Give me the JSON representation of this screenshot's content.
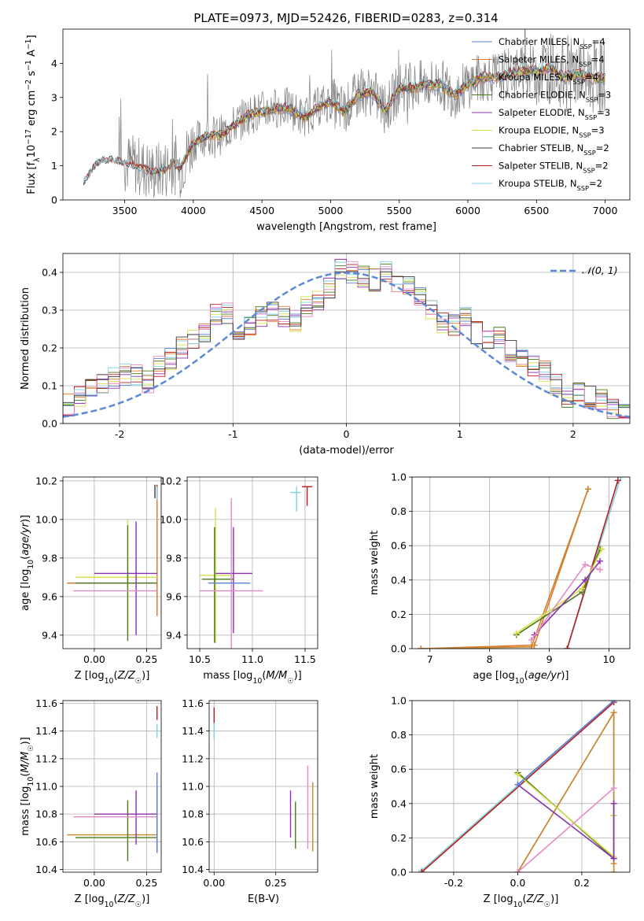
{
  "figure": {
    "title": "PLATE=0973, MJD=52426, FIBERID=0283, z=0.314"
  },
  "colors": {
    "Chabrier MILES": "#5b7fd6",
    "Salpeter MILES": "#e07b2e",
    "Kroupa MILES": "#c8882f",
    "Chabrier ELODIE": "#4a7a1a",
    "Salpeter ELODIE": "#8a2fb0",
    "Kroupa ELODIE": "#d6e04a",
    "Chabrier STELIB": "#3c3c3c",
    "Salpeter STELIB": "#b81c1c",
    "Kroupa STELIB": "#7fd3e0",
    "data": "#808080",
    "normal": "#5b8bd6",
    "extra_pink": "#e68ac4",
    "extra_green": "#7ab83a"
  },
  "chart_data": [
    {
      "id": "spectrum",
      "type": "line",
      "title": "PLATE=0973, MJD=52426, FIBERID=0283, z=0.314",
      "xlabel": "wavelength [Angstrom, rest frame]",
      "ylabel": "Flux [f_λ 10^-17 erg cm^-2 s^-1 A^-1]",
      "xlim": [
        3050,
        7180
      ],
      "ylim": [
        0,
        5
      ],
      "xticks": [
        3500,
        4000,
        4500,
        5000,
        5500,
        6000,
        6500,
        7000
      ],
      "yticks": [
        0,
        1,
        2,
        3,
        4
      ],
      "grid": false,
      "legend_location": "upper right",
      "legend": [
        {
          "label": "Chabrier MILES, N",
          "sub": "SSP",
          "suffix": "=4"
        },
        {
          "label": "Salpeter MILES, N",
          "sub": "SSP",
          "suffix": "=4"
        },
        {
          "label": "Kroupa MILES, N",
          "sub": "SSP",
          "suffix": "=4"
        },
        {
          "label": "Chabrier ELODIE, N",
          "sub": "SSP",
          "suffix": "=3"
        },
        {
          "label": "Salpeter ELODIE, N",
          "sub": "SSP",
          "suffix": "=3"
        },
        {
          "label": "Kroupa ELODIE, N",
          "sub": "SSP",
          "suffix": "=3"
        },
        {
          "label": "Chabrier STELIB, N",
          "sub": "SSP",
          "suffix": "=2"
        },
        {
          "label": "Salpeter STELIB, N",
          "sub": "SSP",
          "suffix": "=2"
        },
        {
          "label": "Kroupa STELIB, N",
          "sub": "SSP",
          "suffix": "=2"
        }
      ],
      "spectrum_shape": {
        "x": [
          3200,
          3300,
          3400,
          3500,
          3600,
          3700,
          3800,
          3850,
          3900,
          3950,
          4000,
          4100,
          4200,
          4300,
          4400,
          4500,
          4600,
          4700,
          4800,
          4900,
          5000,
          5100,
          5200,
          5300,
          5400,
          5500,
          5600,
          5700,
          5800,
          5900,
          6000,
          6100,
          6200,
          6300,
          6400,
          6500,
          6600,
          6700,
          6800,
          6900,
          7000
        ],
        "y": [
          0.5,
          1.1,
          1.2,
          1.1,
          1.0,
          0.8,
          0.9,
          1.1,
          0.9,
          1.3,
          1.7,
          1.9,
          1.9,
          2.2,
          2.5,
          2.6,
          2.7,
          2.7,
          2.4,
          2.7,
          2.9,
          2.6,
          3.1,
          3.2,
          2.6,
          3.3,
          3.3,
          3.4,
          3.4,
          3.1,
          3.4,
          3.6,
          3.6,
          3.7,
          3.8,
          3.8,
          3.9,
          3.6,
          3.7,
          3.6,
          3.6
        ]
      }
    },
    {
      "id": "residuals",
      "type": "line",
      "xlabel": "(data-model)/error",
      "ylabel": "Normed distribution",
      "xlim": [
        -2.5,
        2.5
      ],
      "ylim": [
        0,
        0.45
      ],
      "xticks": [
        -2,
        -1,
        0,
        1,
        2
      ],
      "yticks": [
        0.0,
        0.1,
        0.2,
        0.3,
        0.4
      ],
      "grid": true,
      "legend_location": "upper right",
      "legend": [
        {
          "label": "𝒩(0, 1)"
        }
      ],
      "reference_curve": {
        "name": "𝒩(0, 1)",
        "kind": "gaussian",
        "mean": 0,
        "sigma": 1
      },
      "histogram_bins": [
        -2.5,
        2.5,
        50
      ],
      "histogram_profile": [
        0.05,
        0.07,
        0.09,
        0.1,
        0.12,
        0.13,
        0.13,
        0.11,
        0.15,
        0.17,
        0.2,
        0.22,
        0.24,
        0.29,
        0.29,
        0.24,
        0.26,
        0.28,
        0.3,
        0.28,
        0.27,
        0.31,
        0.33,
        0.36,
        0.41,
        0.4,
        0.39,
        0.38,
        0.4,
        0.37,
        0.36,
        0.34,
        0.3,
        0.27,
        0.26,
        0.28,
        0.24,
        0.22,
        0.23,
        0.19,
        0.17,
        0.15,
        0.14,
        0.1,
        0.07,
        0.08,
        0.07,
        0.06,
        0.04,
        0.03
      ]
    },
    {
      "id": "age-vs-Z",
      "type": "scatter",
      "xlabel": "Z [log10(Z/Z☉)]",
      "ylabel": "age [log10(age/yr)]",
      "xlim": [
        -0.15,
        0.32
      ],
      "ylim": [
        9.33,
        10.22
      ],
      "xticks": [
        0.0,
        0.25
      ],
      "yticks": [
        9.4,
        9.6,
        9.8,
        10.0,
        10.2
      ],
      "grid": true,
      "points": [
        {
          "series": "Chabrier MILES",
          "x": 0.3,
          "y": 9.67,
          "xerr": [
            0.43,
            0.0
          ],
          "yerr": [
            0.17,
            0.5
          ]
        },
        {
          "series": "Salpeter MILES",
          "x": 0.3,
          "y": 9.67,
          "xerr": [
            0.43,
            0.0
          ],
          "yerr": [
            0.17,
            0.5
          ]
        },
        {
          "series": "Kroupa ELODIE",
          "x": 0.16,
          "y": 9.7,
          "xerr": [
            0.25,
            0.14
          ],
          "yerr": [
            0.3,
            0.3
          ]
        },
        {
          "series": "Chabrier ELODIE",
          "x": 0.16,
          "y": 9.67,
          "xerr": [
            0.25,
            0.14
          ],
          "yerr": [
            0.3,
            0.3
          ]
        },
        {
          "series": "Salpeter ELODIE",
          "x": 0.2,
          "y": 9.72,
          "xerr": [
            0.2,
            0.1
          ],
          "yerr": [
            0.32,
            0.27
          ]
        },
        {
          "series": "pink",
          "x": 0.1,
          "y": 9.63,
          "xerr": [
            0.2,
            0.2
          ],
          "yerr": [
            0.0,
            0.0
          ]
        },
        {
          "series": "Salpeter STELIB",
          "x": 0.3,
          "y": 10.15,
          "xerr": [
            0.0,
            0.0
          ],
          "yerr": [
            0.04,
            0.03
          ]
        },
        {
          "series": "Chabrier STELIB",
          "x": 0.29,
          "y": 10.15,
          "xerr": [
            0.0,
            0.0
          ],
          "yerr": [
            0.04,
            0.03
          ]
        },
        {
          "series": "Kroupa STELIB",
          "x": 0.3,
          "y": 10.14,
          "xerr": [
            0.0,
            0.0
          ],
          "yerr": [
            0.04,
            0.03
          ]
        }
      ]
    },
    {
      "id": "age-vs-mass",
      "type": "scatter",
      "xlabel": "mass [log10(M/M☉)]",
      "ylabel": "",
      "xlim": [
        10.38,
        11.62
      ],
      "ylim": [
        9.33,
        10.22
      ],
      "xticks": [
        10.5,
        11.0,
        11.5
      ],
      "yticks": [
        9.4,
        9.6,
        9.8,
        10.0,
        10.2
      ],
      "grid": true,
      "points": [
        {
          "series": "Kroupa ELODIE",
          "x": 10.65,
          "y": 9.71,
          "xerr": [
            0.15,
            0.15
          ],
          "yerr": [
            0.35,
            0.35
          ]
        },
        {
          "series": "Chabrier ELODIE",
          "x": 10.64,
          "y": 9.69,
          "xerr": [
            0.12,
            0.18
          ],
          "yerr": [
            0.33,
            0.27
          ]
        },
        {
          "series": "Salpeter ELODIE",
          "x": 10.82,
          "y": 9.72,
          "xerr": [
            0.17,
            0.18
          ],
          "yerr": [
            0.31,
            0.24
          ]
        },
        {
          "series": "pink",
          "x": 10.8,
          "y": 9.63,
          "xerr": [
            0.3,
            0.3
          ],
          "yerr": [
            0.52,
            0.48
          ]
        },
        {
          "series": "Chabrier MILES",
          "x": 10.68,
          "y": 9.67,
          "xerr": [
            0.1,
            0.3
          ],
          "yerr": [
            0.0,
            0.0
          ]
        },
        {
          "series": "Salpeter STELIB",
          "x": 11.52,
          "y": 10.17,
          "xerr": [
            0.05,
            0.05
          ],
          "yerr": [
            0.1,
            0.0
          ]
        },
        {
          "series": "Kroupa STELIB",
          "x": 11.42,
          "y": 10.14,
          "xerr": [
            0.06,
            0.04
          ],
          "yerr": [
            0.1,
            0.03
          ]
        }
      ]
    },
    {
      "id": "mass-weight-vs-age",
      "type": "line",
      "xlabel": "age [log10(age/yr)]",
      "ylabel": "mass weight",
      "xlim": [
        6.7,
        10.35
      ],
      "ylim": [
        0,
        1.0
      ],
      "xticks": [
        7,
        8,
        9,
        10
      ],
      "yticks": [
        0.0,
        0.2,
        0.4,
        0.6,
        0.8,
        1.0
      ],
      "grid": true,
      "series": [
        {
          "name": "Salpeter MILES",
          "x": [
            6.85,
            8.75,
            9.65
          ],
          "y": [
            0.0,
            0.02,
            0.93
          ]
        },
        {
          "name": "Kroupa MILES",
          "x": [
            6.85,
            8.7,
            9.65
          ],
          "y": [
            0.0,
            0.01,
            0.93
          ]
        },
        {
          "name": "Kroupa STELIB",
          "x": [
            9.3,
            10.2
          ],
          "y": [
            0.0,
            1.0
          ]
        },
        {
          "name": "Salpeter STELIB",
          "x": [
            9.3,
            10.15
          ],
          "y": [
            0.0,
            0.98
          ]
        },
        {
          "name": "Chabrier ELODIE",
          "x": [
            8.45,
            9.55,
            9.85
          ],
          "y": [
            0.08,
            0.33,
            0.58
          ]
        },
        {
          "name": "Kroupa ELODIE",
          "x": [
            8.45,
            9.55,
            9.88
          ],
          "y": [
            0.09,
            0.35,
            0.58
          ]
        },
        {
          "name": "Salpeter ELODIE",
          "x": [
            8.75,
            9.6,
            9.85
          ],
          "y": [
            0.08,
            0.4,
            0.51
          ]
        },
        {
          "name": "pink",
          "x": [
            8.7,
            9.6,
            9.85
          ],
          "y": [
            0.05,
            0.49,
            0.46
          ]
        }
      ]
    },
    {
      "id": "mass-vs-Z",
      "type": "scatter",
      "xlabel": "Z [log10(Z/Z☉)]",
      "ylabel": "mass [log10(M/M☉)]",
      "xlim": [
        -0.15,
        0.32
      ],
      "ylim": [
        10.38,
        11.62
      ],
      "xticks": [
        0.0,
        0.25
      ],
      "yticks": [
        10.4,
        10.6,
        10.8,
        11.0,
        11.2,
        11.4,
        11.6
      ],
      "grid": true,
      "points": [
        {
          "series": "Kroupa MILES",
          "x": 0.3,
          "y": 10.65,
          "xerr": [
            0.43,
            0.0
          ],
          "yerr": [
            0.13,
            0.35
          ]
        },
        {
          "series": "Chabrier ELODIE",
          "x": 0.16,
          "y": 10.63,
          "xerr": [
            0.25,
            0.14
          ],
          "yerr": [
            0.17,
            0.27
          ]
        },
        {
          "series": "Salpeter ELODIE",
          "x": 0.2,
          "y": 10.8,
          "xerr": [
            0.2,
            0.1
          ],
          "yerr": [
            0.22,
            0.17
          ]
        },
        {
          "series": "pink",
          "x": 0.1,
          "y": 10.78,
          "xerr": [
            0.2,
            0.2
          ],
          "yerr": [
            0.0,
            0.0
          ]
        },
        {
          "series": "Salpeter STELIB",
          "x": 0.3,
          "y": 11.53,
          "xerr": [
            0.0,
            0.0
          ],
          "yerr": [
            0.05,
            0.05
          ]
        },
        {
          "series": "Kroupa STELIB",
          "x": 0.3,
          "y": 11.4,
          "xerr": [
            0.0,
            0.0
          ],
          "yerr": [
            0.05,
            0.05
          ]
        },
        {
          "series": "Chabrier MILES",
          "x": 0.3,
          "y": 10.6,
          "xerr": [
            0.0,
            0.0
          ],
          "yerr": [
            0.08,
            0.5
          ]
        }
      ]
    },
    {
      "id": "mass-vs-ebv",
      "type": "scatter",
      "xlabel": "E(B-V)",
      "ylabel": "",
      "xlim": [
        -0.02,
        0.42
      ],
      "ylim": [
        10.38,
        11.62
      ],
      "xticks": [
        0.0,
        0.25
      ],
      "yticks": [
        10.4,
        10.6,
        10.8,
        11.0,
        11.2,
        11.4,
        11.6
      ],
      "grid": true,
      "points": [
        {
          "series": "Salpeter STELIB",
          "x": 0.0,
          "y": 11.5,
          "xerr": [
            0.0,
            0.0
          ],
          "yerr": [
            0.05,
            0.07
          ]
        },
        {
          "series": "Kroupa STELIB",
          "x": 0.0,
          "y": 11.4,
          "xerr": [
            0.0,
            0.0
          ],
          "yerr": [
            0.06,
            0.06
          ]
        },
        {
          "series": "Salpeter ELODIE",
          "x": 0.31,
          "y": 10.8,
          "xerr": [
            0.0,
            0.0
          ],
          "yerr": [
            0.17,
            0.17
          ]
        },
        {
          "series": "Chabrier ELODIE",
          "x": 0.33,
          "y": 10.72,
          "xerr": [
            0.0,
            0.0
          ],
          "yerr": [
            0.17,
            0.17
          ]
        },
        {
          "series": "pink",
          "x": 0.38,
          "y": 10.85,
          "xerr": [
            0.0,
            0.0
          ],
          "yerr": [
            0.3,
            0.3
          ]
        },
        {
          "series": "Kroupa MILES",
          "x": 0.4,
          "y": 10.78,
          "xerr": [
            0.0,
            0.0
          ],
          "yerr": [
            0.25,
            0.25
          ]
        }
      ]
    },
    {
      "id": "mass-weight-vs-Z",
      "type": "line",
      "xlabel": "Z [log10(Z/Z☉)]",
      "ylabel": "mass weight",
      "xlim": [
        -0.33,
        0.35
      ],
      "ylim": [
        0,
        1.0
      ],
      "xticks": [
        -0.2,
        0.0,
        0.2
      ],
      "yticks": [
        0.0,
        0.2,
        0.4,
        0.6,
        0.8,
        1.0
      ],
      "grid": true,
      "series": [
        {
          "name": "Kroupa STELIB",
          "x": [
            -0.3,
            0.3
          ],
          "y": [
            0.01,
            1.0
          ]
        },
        {
          "name": "Salpeter STELIB",
          "x": [
            -0.3,
            0.3
          ],
          "y": [
            0.0,
            0.99
          ]
        },
        {
          "name": "Salpeter MILES",
          "x": [
            0.0,
            0.3,
            0.3
          ],
          "y": [
            0.0,
            0.93,
            0.05
          ]
        },
        {
          "name": "Kroupa MILES",
          "x": [
            0.0,
            0.3,
            0.3
          ],
          "y": [
            0.0,
            0.93,
            0.0
          ]
        },
        {
          "name": "Chabrier ELODIE",
          "x": [
            0.0,
            0.3,
            0.3
          ],
          "y": [
            0.58,
            0.08,
            0.33
          ]
        },
        {
          "name": "Kroupa ELODIE",
          "x": [
            0.0,
            0.3,
            0.3
          ],
          "y": [
            0.57,
            0.09,
            0.33
          ]
        },
        {
          "name": "Salpeter ELODIE",
          "x": [
            0.0,
            0.3,
            0.3
          ],
          "y": [
            0.51,
            0.08,
            0.4
          ]
        },
        {
          "name": "pink",
          "x": [
            0.0,
            0.3
          ],
          "y": [
            0.0,
            0.49
          ]
        },
        {
          "name": "Chabrier MILES",
          "x": [
            0.0,
            0.3
          ],
          "y": [
            0.51,
            1.0
          ]
        }
      ]
    }
  ]
}
